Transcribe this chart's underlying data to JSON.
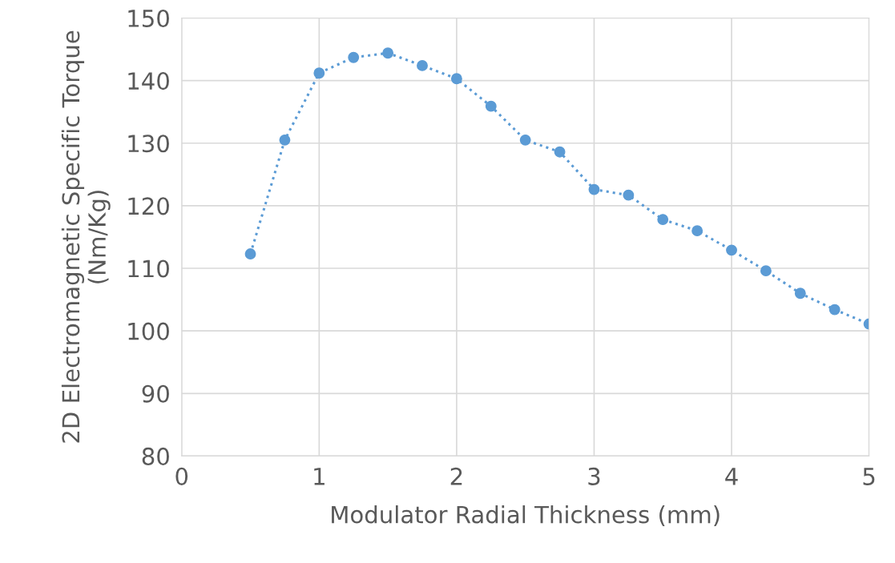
{
  "chart_data": {
    "type": "line",
    "xlabel": "Modulator Radial Thickness (mm)",
    "ylabel": "2D Electromagnetic Specific Torque\n(Nm/Kg)",
    "x": [
      0.5,
      0.75,
      1.0,
      1.25,
      1.5,
      1.75,
      2.0,
      2.25,
      2.5,
      2.75,
      3.0,
      3.25,
      3.5,
      3.75,
      4.0,
      4.25,
      4.5,
      4.75,
      5.0
    ],
    "series": [
      {
        "color": "#5b9bd5",
        "values": [
          112.3,
          130.5,
          141.2,
          143.7,
          144.4,
          142.4,
          140.3,
          135.9,
          130.5,
          128.6,
          122.6,
          121.7,
          117.8,
          116.0,
          112.9,
          109.6,
          106.0,
          103.4,
          101.1
        ]
      }
    ],
    "xlim": [
      0,
      5
    ],
    "xticks": [
      0,
      1,
      2,
      3,
      4,
      5
    ],
    "ylim": [
      80,
      150
    ],
    "yticks": [
      80,
      90,
      100,
      110,
      120,
      130,
      140,
      150
    ],
    "grid": true,
    "marker": "circle",
    "line_style": "dotted"
  }
}
